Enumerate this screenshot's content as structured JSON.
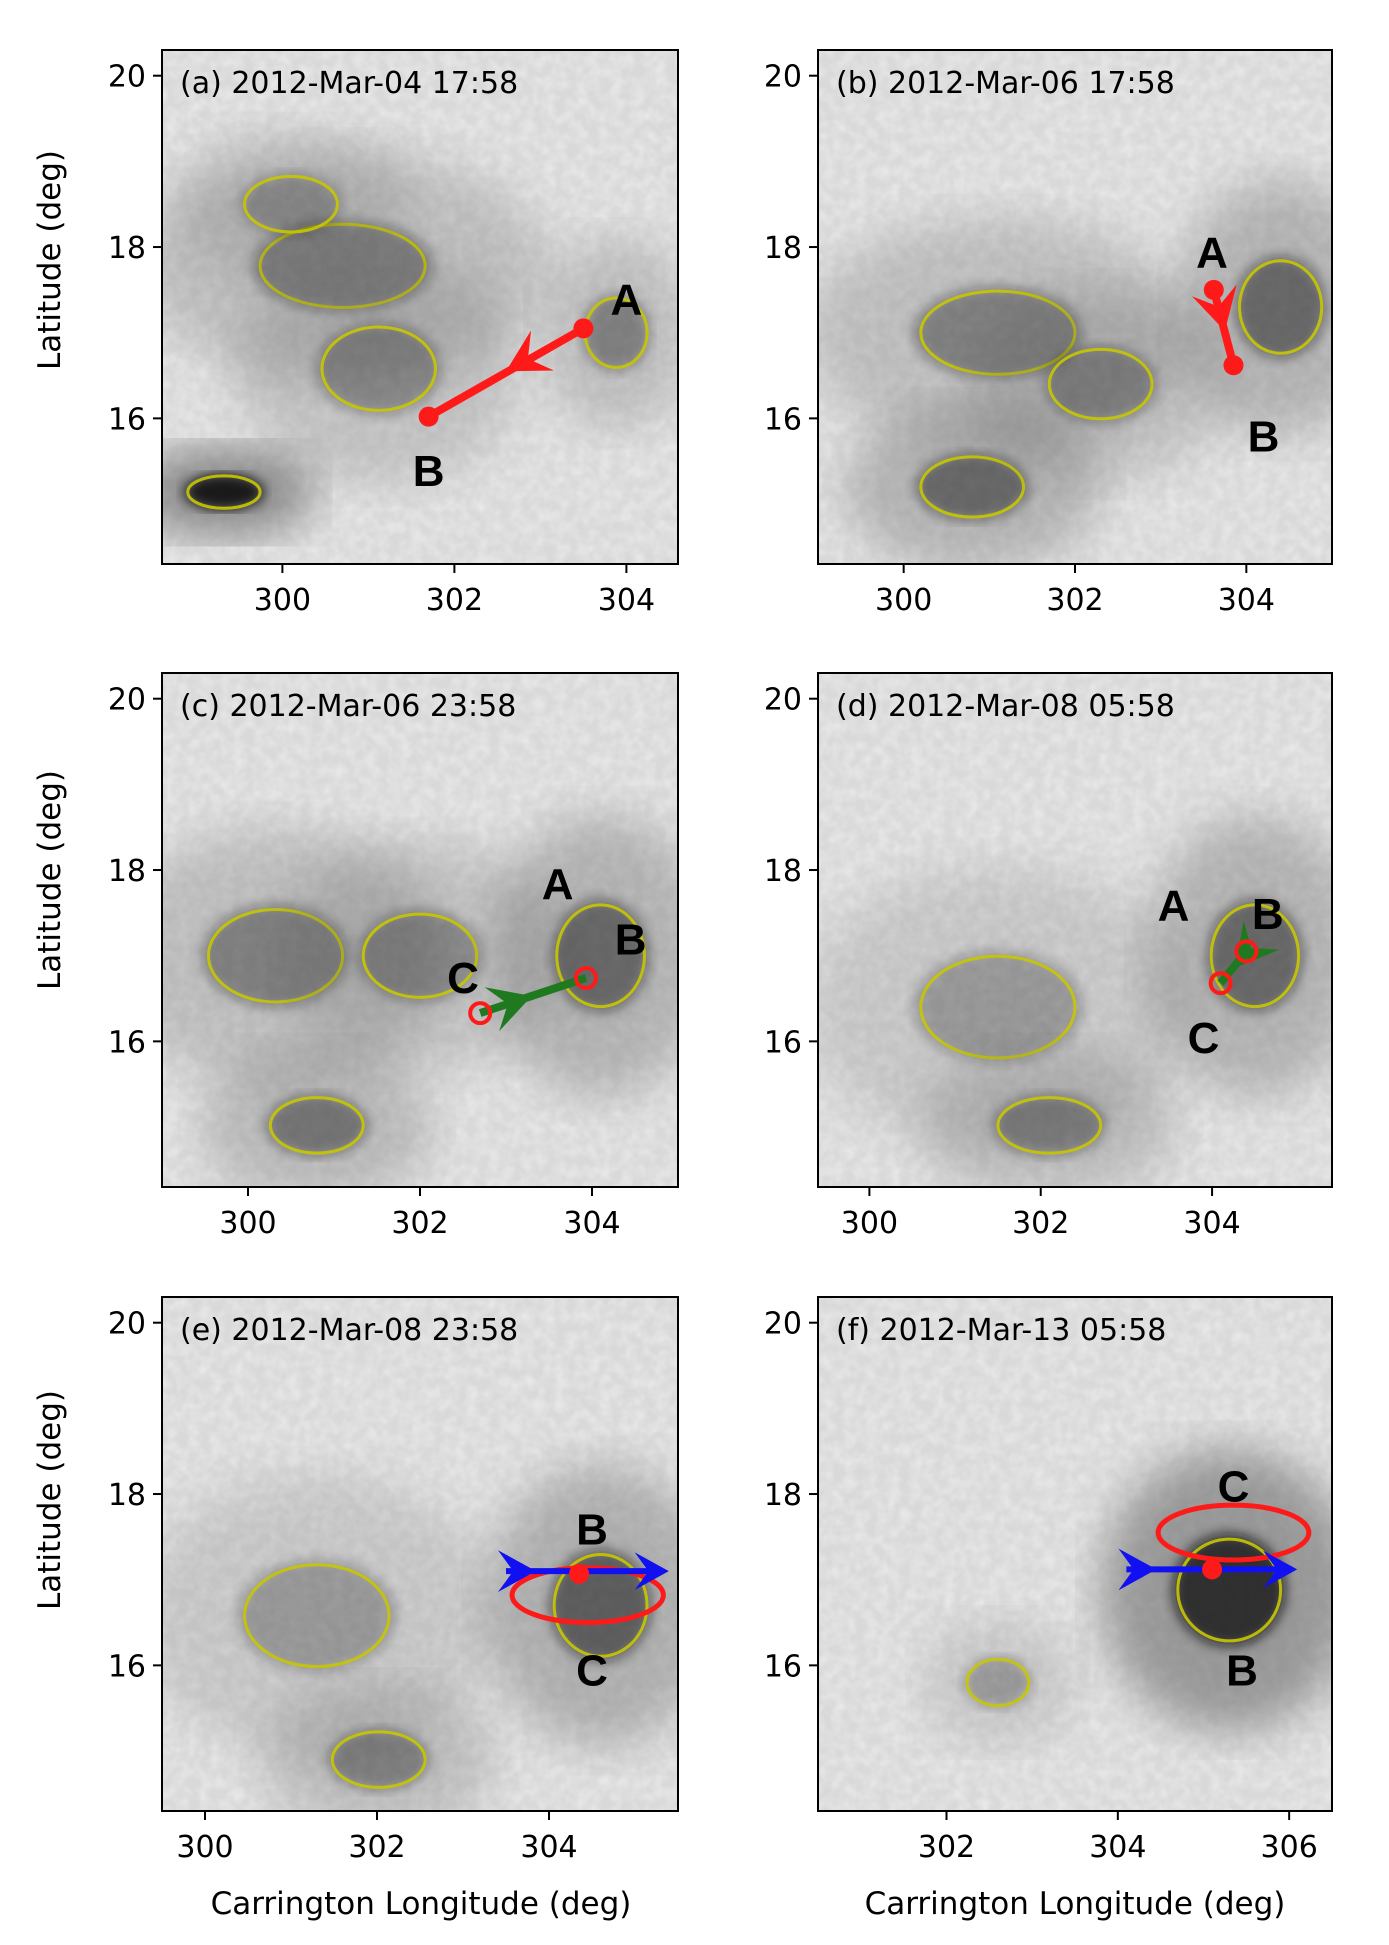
{
  "figure": {
    "xlabel": "Carrington Longitude (deg)",
    "ylabel": "Latitude (deg)"
  },
  "colors": {
    "contour": "#c8c800",
    "marker_red": "#ff1a1a",
    "marker_green": "#1f7a1f",
    "marker_blue": "#1010f0",
    "frame": "#000000"
  },
  "chart_data": [
    {
      "type": "scatter",
      "panel": "a",
      "title": "(a) 2012-Mar-04 17:58",
      "xlim": [
        298.6,
        304.6
      ],
      "ylim": [
        14.3,
        20.3
      ],
      "xticks": [
        300,
        302,
        304
      ],
      "yticks": [
        16,
        18,
        20
      ],
      "points": [
        {
          "name": "A",
          "x": 303.5,
          "y": 17.05
        },
        {
          "name": "B",
          "x": 301.7,
          "y": 16.02
        }
      ],
      "labels": [
        {
          "text": "A",
          "x": 304.0,
          "y": 17.4
        },
        {
          "text": "B",
          "x": 301.7,
          "y": 15.4
        }
      ],
      "arrow": {
        "color": "red",
        "from": "A",
        "to": "B",
        "head_at": [
          302.6,
          16.55
        ]
      }
    },
    {
      "type": "scatter",
      "panel": "b",
      "title": "(b) 2012-Mar-06 17:58",
      "xlim": [
        299.0,
        305.0
      ],
      "ylim": [
        14.3,
        20.3
      ],
      "xticks": [
        300,
        302,
        304
      ],
      "yticks": [
        16,
        18,
        20
      ],
      "points": [
        {
          "name": "A",
          "x": 303.62,
          "y": 17.5
        },
        {
          "name": "B",
          "x": 303.85,
          "y": 16.62
        }
      ],
      "labels": [
        {
          "text": "A",
          "x": 303.6,
          "y": 17.95
        },
        {
          "text": "B",
          "x": 304.2,
          "y": 15.8
        }
      ],
      "arrow": {
        "color": "red",
        "from": "A",
        "to": "B",
        "head_at": [
          303.75,
          17.02
        ]
      }
    },
    {
      "type": "scatter",
      "panel": "c",
      "title": "(c) 2012-Mar-06 23:58",
      "xlim": [
        299.0,
        305.0
      ],
      "ylim": [
        14.3,
        20.3
      ],
      "xticks": [
        300,
        302,
        304
      ],
      "yticks": [
        16,
        18,
        20
      ],
      "points": [
        {
          "name": "C",
          "x": 302.7,
          "y": 16.33
        },
        {
          "name": "B",
          "x": 303.93,
          "y": 16.74
        }
      ],
      "labels": [
        {
          "text": "A",
          "x": 303.6,
          "y": 17.85
        },
        {
          "text": "B",
          "x": 304.45,
          "y": 17.2
        },
        {
          "text": "C",
          "x": 302.5,
          "y": 16.75
        }
      ],
      "arrow": {
        "color": "green",
        "from": "C",
        "to": "B",
        "head_at": [
          303.3,
          16.53
        ]
      }
    },
    {
      "type": "scatter",
      "panel": "d",
      "title": "(d) 2012-Mar-08 05:58",
      "xlim": [
        299.4,
        305.4
      ],
      "ylim": [
        14.3,
        20.3
      ],
      "xticks": [
        300,
        302,
        304
      ],
      "yticks": [
        16,
        18,
        20
      ],
      "points": [
        {
          "name": "B",
          "x": 304.4,
          "y": 17.05
        },
        {
          "name": "C",
          "x": 304.1,
          "y": 16.68
        }
      ],
      "labels": [
        {
          "text": "A",
          "x": 303.55,
          "y": 17.6
        },
        {
          "text": "B",
          "x": 304.65,
          "y": 17.5
        },
        {
          "text": "C",
          "x": 303.9,
          "y": 16.05
        }
      ],
      "arrow": {
        "color": "green",
        "from": "B",
        "to": "C",
        "head_at": [
          304.27,
          16.86
        ]
      }
    },
    {
      "type": "scatter",
      "panel": "e",
      "title": "(e) 2012-Mar-08 23:58",
      "xlim": [
        299.5,
        305.5
      ],
      "ylim": [
        14.3,
        20.3
      ],
      "xticks": [
        300,
        302,
        304
      ],
      "yticks": [
        16,
        18,
        20
      ],
      "points": [
        {
          "name": "B",
          "x": 304.35,
          "y": 17.07
        }
      ],
      "ellipse": {
        "cx": 304.45,
        "cy": 16.82,
        "rx": 0.88,
        "ry": 0.32,
        "color": "red"
      },
      "labels": [
        {
          "text": "B",
          "x": 304.5,
          "y": 17.6
        },
        {
          "text": "C",
          "x": 304.5,
          "y": 15.95
        }
      ],
      "arrow": {
        "color": "blue",
        "from_x": 303.5,
        "to_x": 305.3,
        "y": 17.1
      }
    },
    {
      "type": "scatter",
      "panel": "f",
      "title": "(f) 2012-Mar-13 05:58",
      "xlim": [
        300.5,
        306.5
      ],
      "ylim": [
        14.3,
        20.3
      ],
      "xticks": [
        302,
        304,
        306
      ],
      "yticks": [
        16,
        18,
        20
      ],
      "points": [
        {
          "name": "C",
          "x": 305.1,
          "y": 17.12
        }
      ],
      "ellipse": {
        "cx": 305.35,
        "cy": 17.55,
        "rx": 0.88,
        "ry": 0.32,
        "color": "red"
      },
      "labels": [
        {
          "text": "C",
          "x": 305.35,
          "y": 18.1
        },
        {
          "text": "B",
          "x": 305.45,
          "y": 15.95
        }
      ],
      "arrow": {
        "color": "blue",
        "from_x": 304.1,
        "to_x": 306.0,
        "y": 17.12
      }
    }
  ]
}
